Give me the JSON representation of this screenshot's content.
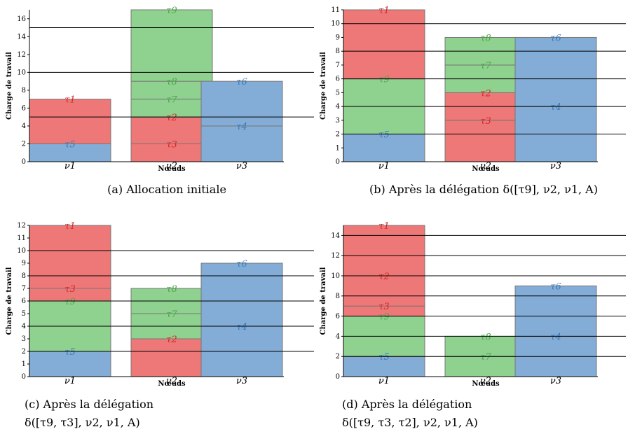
{
  "colors": {
    "red": "#ee7777",
    "green": "#8fd18f",
    "blue": "#83add6",
    "red_label": "#d62728",
    "green_label": "#4aa84a",
    "blue_label": "#3a78b8",
    "edge": "#777777",
    "line": "#000000"
  },
  "chart_data": [
    {
      "type": "bar",
      "caption": "(a) Allocation initiale",
      "xlabel": "Nœuds",
      "ylabel": "Charge de travail",
      "ylim": [
        0,
        17
      ],
      "yticks": [
        0,
        2,
        4,
        6,
        8,
        10,
        12,
        14,
        16
      ],
      "hlines": [
        5,
        10,
        15
      ],
      "categories": [
        "ν1",
        "ν2",
        "ν3"
      ],
      "stacks": [
        [
          {
            "task": "τ5",
            "value": 2,
            "color": "blue"
          },
          {
            "task": "τ1",
            "value": 5,
            "color": "red"
          }
        ],
        [
          {
            "task": "τ3",
            "value": 2,
            "color": "red"
          },
          {
            "task": "τ2",
            "value": 3,
            "color": "red"
          },
          {
            "task": "τ7",
            "value": 2,
            "color": "green"
          },
          {
            "task": "τ8",
            "value": 2,
            "color": "green"
          },
          {
            "task": "τ9",
            "value": 8,
            "color": "green"
          }
        ],
        [
          {
            "task": "τ4",
            "value": 4,
            "color": "blue"
          },
          {
            "task": "τ6",
            "value": 5,
            "color": "blue"
          }
        ]
      ]
    },
    {
      "type": "bar",
      "caption": "(b) Après la délégation δ([τ9], ν2, ν1, A)",
      "xlabel": "Nœuds",
      "ylabel": "Charge de travail",
      "ylim": [
        0,
        11
      ],
      "yticks": [
        0,
        1,
        2,
        3,
        4,
        5,
        6,
        7,
        8,
        9,
        10,
        11
      ],
      "hlines": [
        2,
        4,
        6,
        8,
        10
      ],
      "categories": [
        "ν1",
        "ν2",
        "ν3"
      ],
      "stacks": [
        [
          {
            "task": "τ5",
            "value": 2,
            "color": "blue"
          },
          {
            "task": "τ9",
            "value": 4,
            "color": "green"
          },
          {
            "task": "τ1",
            "value": 5,
            "color": "red"
          }
        ],
        [
          {
            "task": "τ3",
            "value": 3,
            "color": "red"
          },
          {
            "task": "τ2",
            "value": 2,
            "color": "red"
          },
          {
            "task": "τ7",
            "value": 2,
            "color": "green"
          },
          {
            "task": "τ8",
            "value": 2,
            "color": "green"
          }
        ],
        [
          {
            "task": "τ4",
            "value": 4,
            "color": "blue"
          },
          {
            "task": "τ6",
            "value": 5,
            "color": "blue"
          }
        ]
      ]
    },
    {
      "type": "bar",
      "caption": "(c)    Après    la    délégation",
      "caption2": "δ([τ9, τ3], ν2, ν1, A)",
      "xlabel": "Nœuds",
      "ylabel": "Charge de travail",
      "ylim": [
        0,
        12
      ],
      "yticks": [
        0,
        1,
        2,
        3,
        4,
        5,
        6,
        7,
        8,
        9,
        10,
        11,
        12
      ],
      "hlines": [
        2,
        4,
        6,
        8,
        10
      ],
      "categories": [
        "ν1",
        "ν2",
        "ν3"
      ],
      "stacks": [
        [
          {
            "task": "τ5",
            "value": 2,
            "color": "blue"
          },
          {
            "task": "τ9",
            "value": 4,
            "color": "green"
          },
          {
            "task": "τ3",
            "value": 1,
            "color": "red"
          },
          {
            "task": "τ1",
            "value": 5,
            "color": "red"
          }
        ],
        [
          {
            "task": "τ2",
            "value": 3,
            "color": "red"
          },
          {
            "task": "τ7",
            "value": 2,
            "color": "green"
          },
          {
            "task": "τ8",
            "value": 2,
            "color": "green"
          }
        ],
        [
          {
            "task": "τ4",
            "value": 4,
            "color": "blue"
          },
          {
            "task": "τ6",
            "value": 5,
            "color": "blue"
          }
        ]
      ]
    },
    {
      "type": "bar",
      "caption": "(d)    Après    la    délégation",
      "caption2": "δ([τ9, τ3, τ2], ν2, ν1, A)",
      "xlabel": "Nœuds",
      "ylabel": "Charge de travail",
      "ylim": [
        0,
        15
      ],
      "yticks": [
        0,
        2,
        4,
        6,
        8,
        10,
        12,
        14
      ],
      "hlines": [
        2,
        4,
        6,
        8,
        10,
        12,
        14
      ],
      "categories": [
        "ν1",
        "ν2",
        "ν3"
      ],
      "stacks": [
        [
          {
            "task": "τ5",
            "value": 2,
            "color": "blue"
          },
          {
            "task": "τ9",
            "value": 4,
            "color": "green"
          },
          {
            "task": "τ3",
            "value": 1,
            "color": "red"
          },
          {
            "task": "τ2",
            "value": 3,
            "color": "red"
          },
          {
            "task": "τ1",
            "value": 5,
            "color": "red"
          }
        ],
        [
          {
            "task": "τ7",
            "value": 2,
            "color": "green"
          },
          {
            "task": "τ8",
            "value": 2,
            "color": "green"
          }
        ],
        [
          {
            "task": "τ4",
            "value": 4,
            "color": "blue"
          },
          {
            "task": "τ6",
            "value": 5,
            "color": "blue"
          }
        ]
      ]
    }
  ]
}
